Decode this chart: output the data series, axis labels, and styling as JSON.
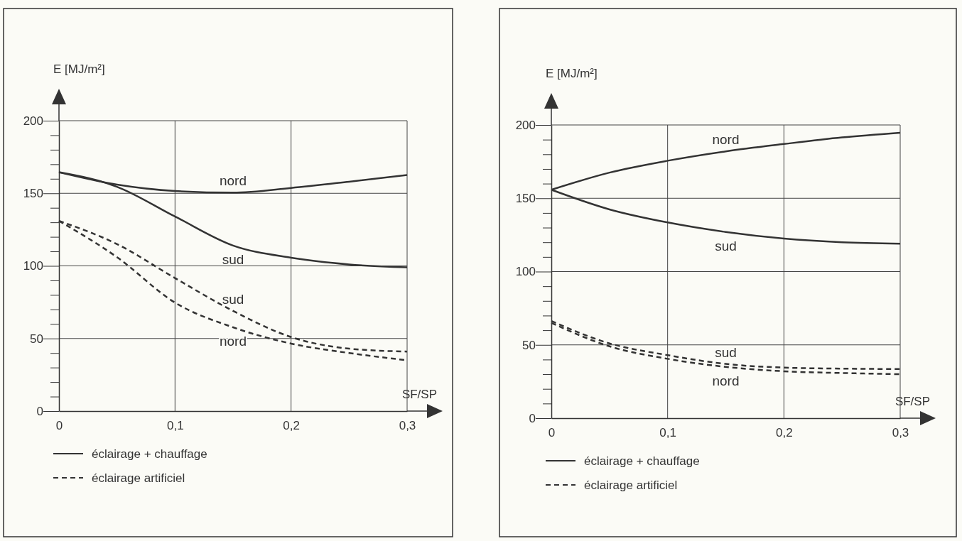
{
  "chart_data": [
    {
      "type": "line",
      "x": [
        0,
        0.05,
        0.1,
        0.15,
        0.2,
        0.25,
        0.3
      ],
      "xlabel": "SF/SP",
      "ylabel": "E [MJ/m²]",
      "xlim": [
        0,
        0.3
      ],
      "ylim": [
        0,
        200
      ],
      "xticks": [
        {
          "value": 0,
          "label": "0"
        },
        {
          "value": 0.1,
          "label": "0,1"
        },
        {
          "value": 0.2,
          "label": "0,2"
        },
        {
          "value": 0.3,
          "label": "0,3"
        }
      ],
      "yticks": [
        0,
        {
          "value": 10,
          "label": null
        },
        {
          "value": 20,
          "label": null
        },
        {
          "value": 30,
          "label": null
        },
        {
          "value": 40,
          "label": null
        },
        50,
        {
          "value": 60,
          "label": null
        },
        {
          "value": 70,
          "label": null
        },
        {
          "value": 80,
          "label": null
        },
        {
          "value": 90,
          "label": null
        },
        100,
        {
          "value": 110,
          "label": null
        },
        {
          "value": 120,
          "label": null
        },
        {
          "value": 130,
          "label": null
        },
        {
          "value": 140,
          "label": null
        },
        150,
        {
          "value": 160,
          "label": null
        },
        {
          "value": 170,
          "label": null
        },
        {
          "value": 180,
          "label": null
        },
        {
          "value": 190,
          "label": null
        },
        200
      ],
      "grid": true,
      "series": [
        {
          "name": "nord",
          "color": "#333333",
          "line_style": "solid",
          "values": [
            164.5,
            156,
            151.6,
            150.5,
            153.7,
            158,
            162.6
          ]
        },
        {
          "name": "sud",
          "color": "#333333",
          "line_style": "solid",
          "values": [
            164.5,
            154.5,
            134,
            114,
            105.6,
            101,
            99
          ]
        },
        {
          "name": "sud",
          "color": "#333333",
          "line_style": "dashed",
          "values": [
            131,
            115,
            91.6,
            69,
            51,
            43,
            41
          ]
        },
        {
          "name": "nord",
          "color": "#333333",
          "line_style": "dashed",
          "values": [
            131,
            106,
            74.7,
            57.7,
            46.5,
            40,
            35
          ]
        }
      ],
      "annotations": [
        "éclairage + chauffage",
        "éclairage artificiel"
      ]
    },
    {
      "type": "line",
      "x": [
        0,
        0.05,
        0.1,
        0.15,
        0.2,
        0.25,
        0.3
      ],
      "xlabel": "SF/SP",
      "ylabel": "E [MJ/m²]",
      "xlim": [
        0,
        0.3
      ],
      "ylim": [
        0,
        200
      ],
      "xticks": [
        {
          "value": 0,
          "label": "0"
        },
        {
          "value": 0.1,
          "label": "0,1"
        },
        {
          "value": 0.2,
          "label": "0,2"
        },
        {
          "value": 0.3,
          "label": "0,3"
        }
      ],
      "yticks": [
        0,
        {
          "value": 10,
          "label": null
        },
        {
          "value": 20,
          "label": null
        },
        {
          "value": 30,
          "label": null
        },
        {
          "value": 40,
          "label": null
        },
        50,
        {
          "value": 60,
          "label": null
        },
        {
          "value": 70,
          "label": null
        },
        {
          "value": 80,
          "label": null
        },
        {
          "value": 90,
          "label": null
        },
        100,
        {
          "value": 110,
          "label": null
        },
        {
          "value": 120,
          "label": null
        },
        {
          "value": 130,
          "label": null
        },
        {
          "value": 140,
          "label": null
        },
        150,
        {
          "value": 160,
          "label": null
        },
        {
          "value": 170,
          "label": null
        },
        {
          "value": 180,
          "label": null
        },
        {
          "value": 190,
          "label": null
        },
        200
      ],
      "grid": true,
      "series": [
        {
          "name": "nord",
          "color": "#333333",
          "line_style": "solid",
          "values": [
            155.8,
            167.5,
            175.6,
            182,
            187,
            191.5,
            194.7
          ]
        },
        {
          "name": "sud",
          "color": "#333333",
          "line_style": "solid",
          "values": [
            155.8,
            142.4,
            133.5,
            127,
            122.5,
            120,
            119
          ]
        },
        {
          "name": "sud",
          "color": "#333333",
          "line_style": "dashed",
          "values": [
            66.3,
            51,
            43,
            37,
            34.5,
            33.8,
            33.5
          ]
        },
        {
          "name": "nord",
          "color": "#333333",
          "line_style": "dashed",
          "values": [
            65,
            49,
            40.5,
            35,
            32,
            30.8,
            30
          ]
        }
      ],
      "annotations": [
        "éclairage + chauffage",
        "éclairage artificiel"
      ]
    }
  ]
}
